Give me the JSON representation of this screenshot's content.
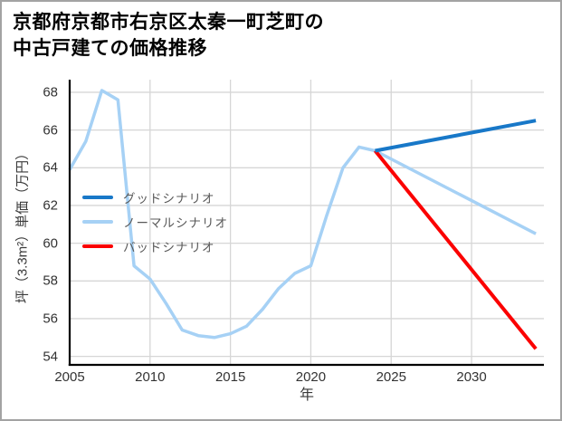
{
  "title": {
    "line1": "京都府京都市右京区太秦一町芝町の",
    "line2": "中古戸建ての価格推移"
  },
  "chart_data": {
    "type": "line",
    "title": "京都府京都市右京区太秦一町芝町の中古戸建ての価格推移",
    "xlabel": "年",
    "ylabel": "坪（3.3m²）単価（万円）",
    "xlim": [
      2005,
      2034.5
    ],
    "ylim": [
      53.55,
      68.67
    ],
    "x_ticks": [
      "2005",
      "2010",
      "2015",
      "2020",
      "2025",
      "2030"
    ],
    "x_tick_values": [
      2005,
      2010,
      2015,
      2020,
      2025,
      2030
    ],
    "y_ticks": [
      "54",
      "56",
      "58",
      "60",
      "62",
      "64",
      "66",
      "68"
    ],
    "y_tick_values": [
      54,
      56,
      58,
      60,
      62,
      64,
      66,
      68
    ],
    "grid": true,
    "legend_position": "upper-left",
    "series": [
      {
        "name": "グッドシナリオ",
        "color": "#1878c8",
        "width": 4,
        "z": 3,
        "x": [
          2024,
          2034
        ],
        "y": [
          64.9,
          66.5
        ]
      },
      {
        "name": "ノーマルシナリオ",
        "color": "#a6d1f5",
        "width": 3.5,
        "z": 1,
        "x": [
          2005,
          2006,
          2007,
          2008,
          2009,
          2010,
          2011,
          2012,
          2013,
          2014,
          2015,
          2016,
          2017,
          2018,
          2019,
          2020,
          2021,
          2022,
          2023,
          2024,
          2034
        ],
        "y": [
          63.9,
          65.4,
          68.1,
          67.6,
          58.8,
          58.1,
          56.8,
          55.4,
          55.1,
          55.0,
          55.2,
          55.6,
          56.5,
          57.6,
          58.4,
          58.8,
          61.5,
          64.0,
          65.1,
          64.9,
          60.5
        ]
      },
      {
        "name": "バッドシナリオ",
        "color": "#fb0000",
        "width": 4,
        "z": 2,
        "x": [
          2024,
          2034
        ],
        "y": [
          64.9,
          54.4
        ]
      }
    ]
  },
  "colors": {
    "grid": "#d6d6d6",
    "spine": "#000000",
    "tick_text": "#333333",
    "legend_text": "#595959",
    "frame_border": "#a3a3a3",
    "good_scenario": "#1878c8",
    "normal_scenario": "#a6d1f5",
    "bad_scenario": "#fb0000"
  }
}
